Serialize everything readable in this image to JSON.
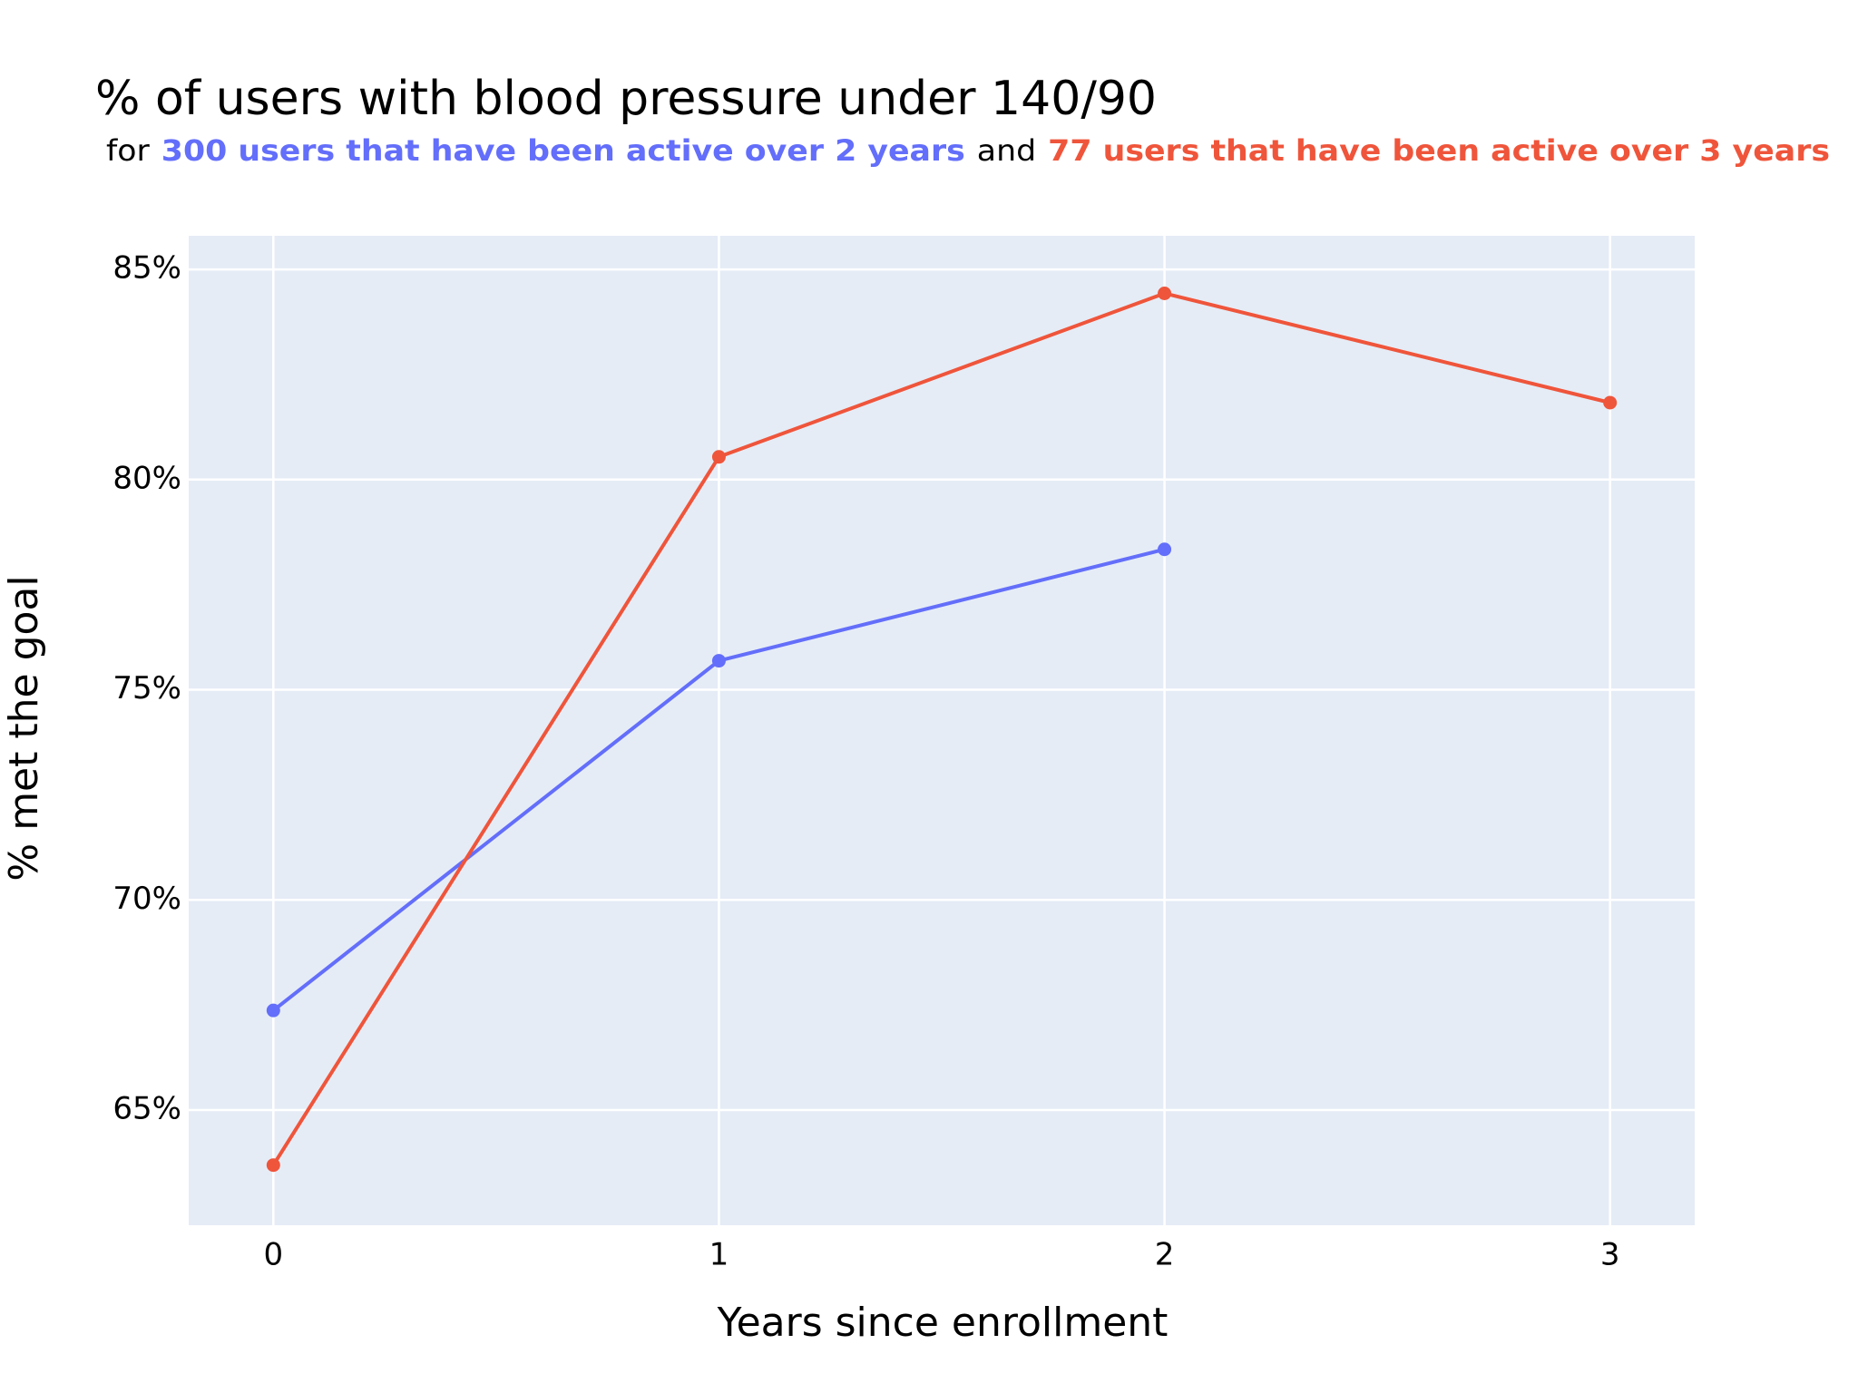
{
  "chart_data": {
    "type": "line",
    "title": "% of users with blood pressure under 140/90",
    "subtitle": [
      {
        "text": "for",
        "color": "#000000"
      },
      {
        "text": "300 users that have been active over 2 years",
        "color": "#636efa"
      },
      {
        "text": "and",
        "color": "#000000"
      },
      {
        "text": "77 users that have been active over 3 years",
        "color": "#ef553b"
      }
    ],
    "x_label": "Years since enrollment",
    "y_label": "% met the goal",
    "xlim": [
      -0.19,
      3.19
    ],
    "xticks": [
      0,
      1,
      2,
      3
    ],
    "ylim": [
      62.26,
      85.8
    ],
    "yticks": [
      {
        "value": 65,
        "label": "65%"
      },
      {
        "value": 70,
        "label": "70%"
      },
      {
        "value": 75,
        "label": "75%"
      },
      {
        "value": 80,
        "label": "80%"
      },
      {
        "value": 85,
        "label": "85%"
      }
    ],
    "grid": true,
    "x": [
      0,
      1,
      2,
      3
    ],
    "series": [
      {
        "color": "#636efa",
        "values": [
          67.37,
          75.69,
          78.34,
          null
        ]
      },
      {
        "color": "#ef553b",
        "values": [
          63.69,
          80.54,
          84.43,
          81.83
        ]
      }
    ]
  }
}
